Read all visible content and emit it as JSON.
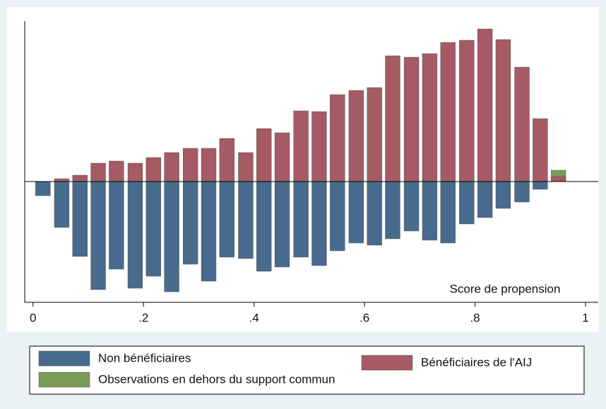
{
  "chart_data": {
    "type": "bar",
    "x": [
      0.018,
      0.052,
      0.085,
      0.118,
      0.151,
      0.185,
      0.218,
      0.251,
      0.285,
      0.318,
      0.351,
      0.385,
      0.418,
      0.451,
      0.485,
      0.518,
      0.551,
      0.585,
      0.618,
      0.651,
      0.685,
      0.718,
      0.751,
      0.785,
      0.818,
      0.851,
      0.885,
      0.918,
      0.951
    ],
    "series": [
      {
        "name": "Non bénéficiaires",
        "color": "#476b8d",
        "values": [
          -20,
          -65,
          -106,
          -153,
          -124,
          -151,
          -134,
          -156,
          -117,
          -141,
          -107,
          -109,
          -127,
          -121,
          -107,
          -119,
          -98,
          -87,
          -90,
          -81,
          -70,
          -83,
          -87,
          -60,
          -51,
          -38,
          -29,
          -11,
          null
        ]
      },
      {
        "name": "Bénéficiaires de l'AIJ",
        "color": "#a65a64",
        "values": [
          null,
          4,
          9,
          26,
          29,
          26,
          34,
          41,
          47,
          47,
          61,
          41,
          75,
          69,
          100,
          99,
          123,
          129,
          133,
          178,
          176,
          181,
          197,
          200,
          216,
          201,
          162,
          89,
          7
        ]
      },
      {
        "name": "Observations en dehors du support commun",
        "color": "#7b9a58",
        "values": [
          null,
          null,
          null,
          null,
          null,
          null,
          null,
          null,
          null,
          null,
          null,
          null,
          null,
          null,
          null,
          null,
          null,
          null,
          null,
          null,
          null,
          null,
          null,
          null,
          null,
          null,
          null,
          null,
          9
        ]
      }
    ],
    "xlim": [
      -0.015,
      1.023
    ],
    "ylim": [
      -171,
      227
    ],
    "xticks": [
      0,
      {
        "value": 0.2,
        "label": ".2"
      },
      {
        "value": 0.4,
        "label": ".4"
      },
      {
        "value": 0.6,
        "label": ".6"
      },
      {
        "value": 0.8,
        "label": ".8"
      },
      1
    ],
    "annotation": "Score de propension",
    "grid": false,
    "legend": "bottom"
  }
}
